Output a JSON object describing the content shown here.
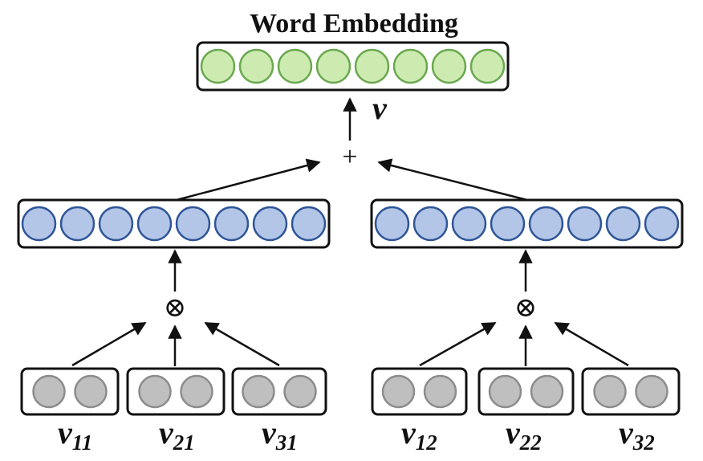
{
  "title": "Word Embedding",
  "output_symbol": "v",
  "sum_operator": "+",
  "product_operator": "⊗",
  "colors": {
    "output_fill": "#cdebb1",
    "output_stroke": "#6aa84f",
    "hidden_fill": "#b3c6e7",
    "hidden_stroke": "#2f5597",
    "input_fill": "#bfbfbf",
    "input_stroke": "#8c8c8c",
    "box_stroke": "#111111"
  },
  "output_layer": {
    "units": 8
  },
  "branches": [
    {
      "hidden_units": 8,
      "inputs": [
        {
          "symbol": "v",
          "subscript": "11",
          "units": 2
        },
        {
          "symbol": "v",
          "subscript": "21",
          "units": 2
        },
        {
          "symbol": "v",
          "subscript": "31",
          "units": 2
        }
      ]
    },
    {
      "hidden_units": 8,
      "inputs": [
        {
          "symbol": "v",
          "subscript": "12",
          "units": 2
        },
        {
          "symbol": "v",
          "subscript": "22",
          "units": 2
        },
        {
          "symbol": "v",
          "subscript": "32",
          "units": 2
        }
      ]
    }
  ]
}
